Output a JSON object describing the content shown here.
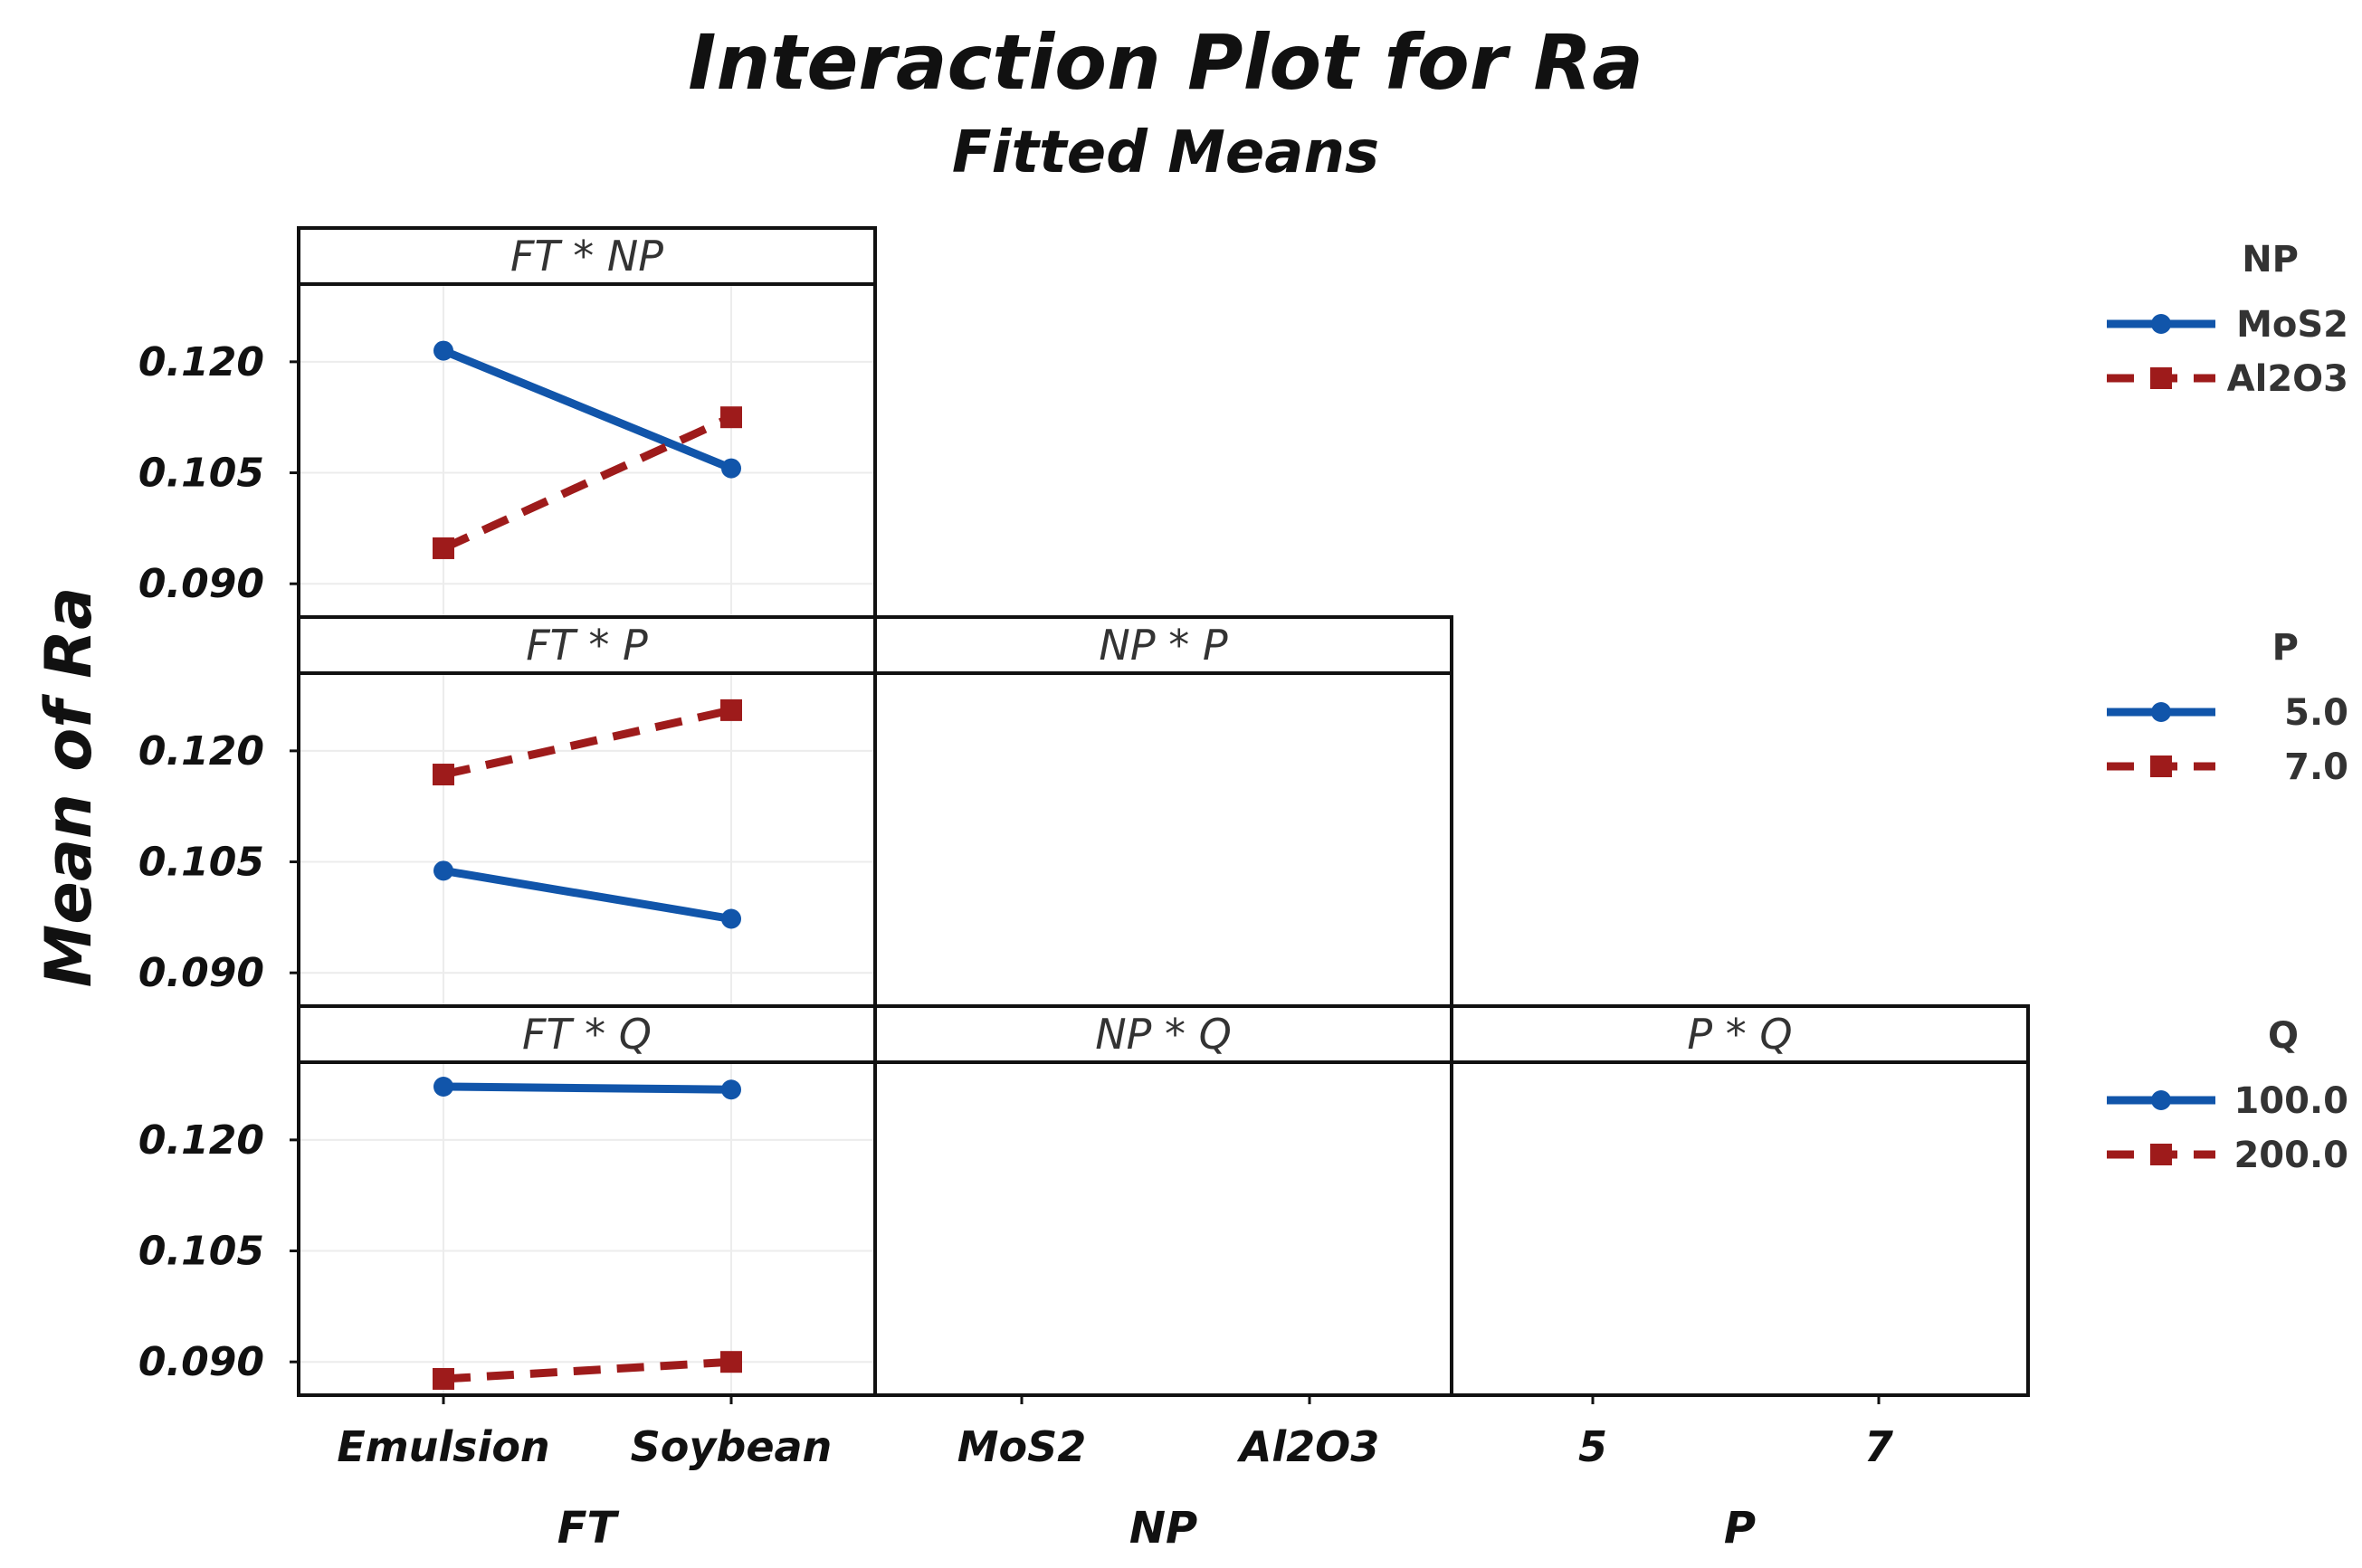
{
  "chart_data": {
    "type": "line",
    "title": "Interaction Plot for Ra",
    "subtitle": "Fitted Means",
    "ylabel": "Mean of Ra",
    "ylim": [
      0.0855,
      0.1305
    ],
    "yticks": [
      "0.120",
      "0.105",
      "0.090"
    ],
    "colors": {
      "series1": "#1155aa",
      "series2": "#9e1b1b"
    },
    "factors": [
      {
        "name": "FT",
        "levels": [
          "Emulsion",
          "Soybean"
        ]
      },
      {
        "name": "NP",
        "levels": [
          "MoS2",
          "Al2O3"
        ]
      },
      {
        "name": "P",
        "levels": [
          "5",
          "7"
        ]
      }
    ],
    "panels": [
      {
        "label": "FT * NP",
        "row": 0,
        "col": 0,
        "series": [
          {
            "name": "MoS2",
            "values": [
              0.1215,
              0.1056
            ]
          },
          {
            "name": "Al2O3",
            "values": [
              0.0948,
              0.1125
            ]
          }
        ]
      },
      {
        "label": "FT * P",
        "row": 1,
        "col": 0,
        "series": [
          {
            "name": "5.0",
            "values": [
              0.1038,
              0.0973
            ]
          },
          {
            "name": "7.0",
            "values": [
              0.1168,
              0.1255
            ]
          }
        ]
      },
      {
        "label": "NP * P",
        "row": 1,
        "col": 1,
        "series": []
      },
      {
        "label": "FT * Q",
        "row": 2,
        "col": 0,
        "series": [
          {
            "name": "100.0",
            "values": [
              0.1272,
              0.1268
            ]
          },
          {
            "name": "200.0",
            "values": [
              0.0877,
              0.09
            ]
          }
        ]
      },
      {
        "label": "NP * Q",
        "row": 2,
        "col": 1,
        "series": []
      },
      {
        "label": "P * Q",
        "row": 2,
        "col": 2,
        "series": []
      }
    ],
    "legends": [
      {
        "title": "NP",
        "entries": [
          "MoS2",
          "Al2O3"
        ]
      },
      {
        "title": "P",
        "entries": [
          "5.0",
          "7.0"
        ]
      },
      {
        "title": "Q",
        "entries": [
          "100.0",
          "200.0"
        ]
      }
    ]
  }
}
